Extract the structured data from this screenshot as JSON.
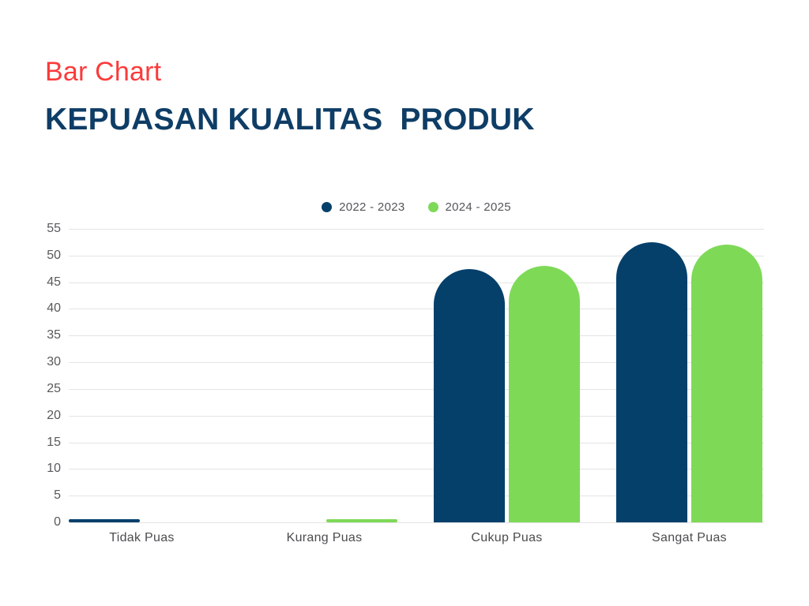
{
  "header": {
    "subtitle": "Bar Chart",
    "title": "KEPUASAN KUALITAS  PRODUK"
  },
  "colors": {
    "background": "#ffffff",
    "accent_red": "#FB3B3B",
    "title_navy": "#0E3D66",
    "grid": "#E4E4E4",
    "y_tick_text": "#58595B",
    "x_label_text": "#4B4C4E",
    "legend_text": "#55565A"
  },
  "chart_data": {
    "type": "bar",
    "title": "KEPUASAN KUALITAS PRODUK",
    "subtitle": "Bar Chart",
    "categories": [
      "Tidak Puas",
      "Kurang Puas",
      "Cukup Puas",
      "Sangat Puas"
    ],
    "series": [
      {
        "name": "2022 - 2023",
        "color": "#05406B",
        "values": [
          0.5,
          0,
          47.5,
          52.5
        ]
      },
      {
        "name": "2024 - 2025",
        "color": "#7ED957",
        "values": [
          0,
          0.5,
          48,
          52
        ]
      }
    ],
    "xlabel": "",
    "ylabel": "",
    "ylim": [
      0,
      55
    ],
    "yticks": [
      0,
      5,
      10,
      15,
      20,
      25,
      30,
      35,
      40,
      45,
      50,
      55
    ],
    "grid": true,
    "legend_position": "top-center",
    "bar_style": "rounded-top"
  }
}
